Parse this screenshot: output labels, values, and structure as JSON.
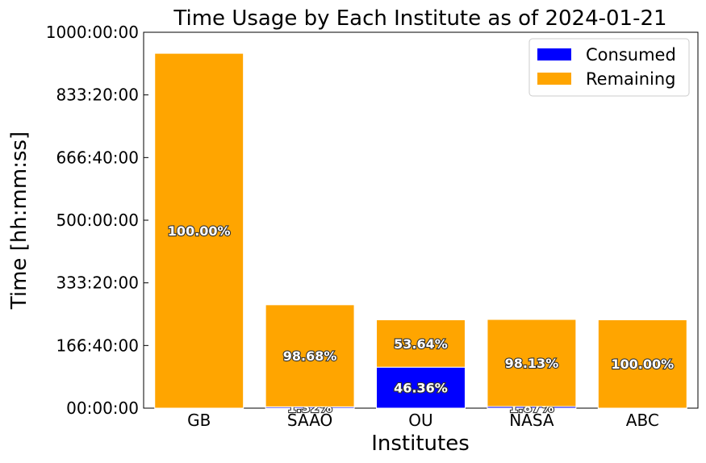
{
  "chart_data": {
    "type": "bar",
    "stacked": true,
    "title": "Time Usage by Each Institute as of 2024-01-21",
    "xlabel": "Institutes",
    "ylabel": "Time [hh:mm:ss]",
    "ylim_hours": [
      0,
      1000
    ],
    "yticks": [
      "00:00:00",
      "166:40:00",
      "333:20:00",
      "500:00:00",
      "666:40:00",
      "833:20:00",
      "1000:00:00"
    ],
    "ytick_hours": [
      0,
      166.667,
      333.333,
      500,
      666.667,
      833.333,
      1000
    ],
    "categories": [
      "GB",
      "SAAO",
      "OU",
      "NASA",
      "ABC"
    ],
    "series": [
      {
        "name": "Consumed",
        "color": "#0000ff",
        "values_hours": [
          0,
          3.6,
          109,
          4.4,
          0
        ],
        "labels": [
          "",
          "1.32%",
          "46.36%",
          "1.87%",
          ""
        ]
      },
      {
        "name": "Remaining",
        "color": "#ffa500",
        "values_hours": [
          944,
          271.4,
          126,
          231.6,
          235
        ],
        "labels": [
          "100.00%",
          "98.68%",
          "53.64%",
          "98.13%",
          "100.00%"
        ]
      }
    ],
    "legend_position": "top-right",
    "grid": false
  }
}
